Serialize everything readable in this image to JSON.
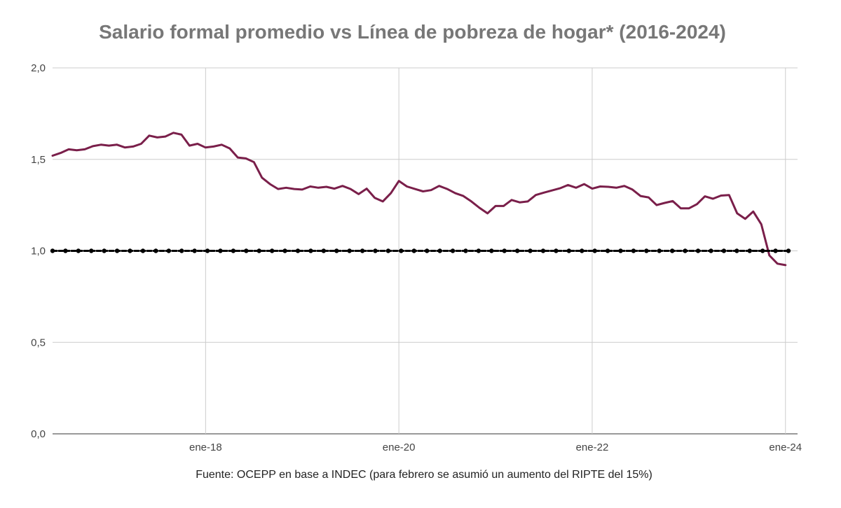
{
  "chart_data": {
    "type": "line",
    "title": "Salario formal promedio vs Línea de pobreza de hogar* (2016-2024)",
    "source": "Fuente: OCEPP en base a INDEC (para febrero se asumió un aumento del RIPTE del 15%)",
    "ylim": [
      0,
      2.0
    ],
    "y_ticks": [
      {
        "value": 0,
        "label": "0,0"
      },
      {
        "value": 0.5,
        "label": "0,5"
      },
      {
        "value": 1.0,
        "label": "1,0"
      },
      {
        "value": 1.5,
        "label": "1,5"
      },
      {
        "value": 2.0,
        "label": "2,0"
      }
    ],
    "x_ticks": [
      {
        "month": 19,
        "label": "ene-18"
      },
      {
        "month": 43,
        "label": "ene-20"
      },
      {
        "month": 67,
        "label": "ene-22"
      },
      {
        "month": 91,
        "label": "ene-24"
      }
    ],
    "x_range": [
      0,
      92.5
    ],
    "grid": true,
    "legend": "none",
    "series": [
      {
        "kind": "line",
        "color": "#7a1f4a",
        "values": [
          1.52,
          1.535,
          1.555,
          1.55,
          1.555,
          1.572,
          1.58,
          1.575,
          1.58,
          1.565,
          1.57,
          1.585,
          1.63,
          1.62,
          1.625,
          1.645,
          1.635,
          1.575,
          1.585,
          1.565,
          1.57,
          1.58,
          1.56,
          1.51,
          1.505,
          1.485,
          1.4,
          1.365,
          1.338,
          1.345,
          1.338,
          1.335,
          1.352,
          1.345,
          1.35,
          1.34,
          1.355,
          1.338,
          1.31,
          1.34,
          1.29,
          1.27,
          1.315,
          1.382,
          1.352,
          1.338,
          1.325,
          1.332,
          1.355,
          1.338,
          1.315,
          1.3,
          1.27,
          1.235,
          1.205,
          1.245,
          1.245,
          1.278,
          1.265,
          1.27,
          1.305,
          1.318,
          1.33,
          1.342,
          1.36,
          1.345,
          1.365,
          1.34,
          1.352,
          1.35,
          1.345,
          1.355,
          1.335,
          1.3,
          1.292,
          1.25,
          1.262,
          1.272,
          1.232,
          1.232,
          1.255,
          1.298,
          1.285,
          1.302,
          1.305,
          1.205,
          1.175,
          1.215,
          1.145,
          0.975,
          0.93,
          0.922
        ]
      },
      {
        "kind": "dotted-reference",
        "color": "#000000",
        "values": [
          1.0,
          1.0
        ]
      }
    ]
  }
}
